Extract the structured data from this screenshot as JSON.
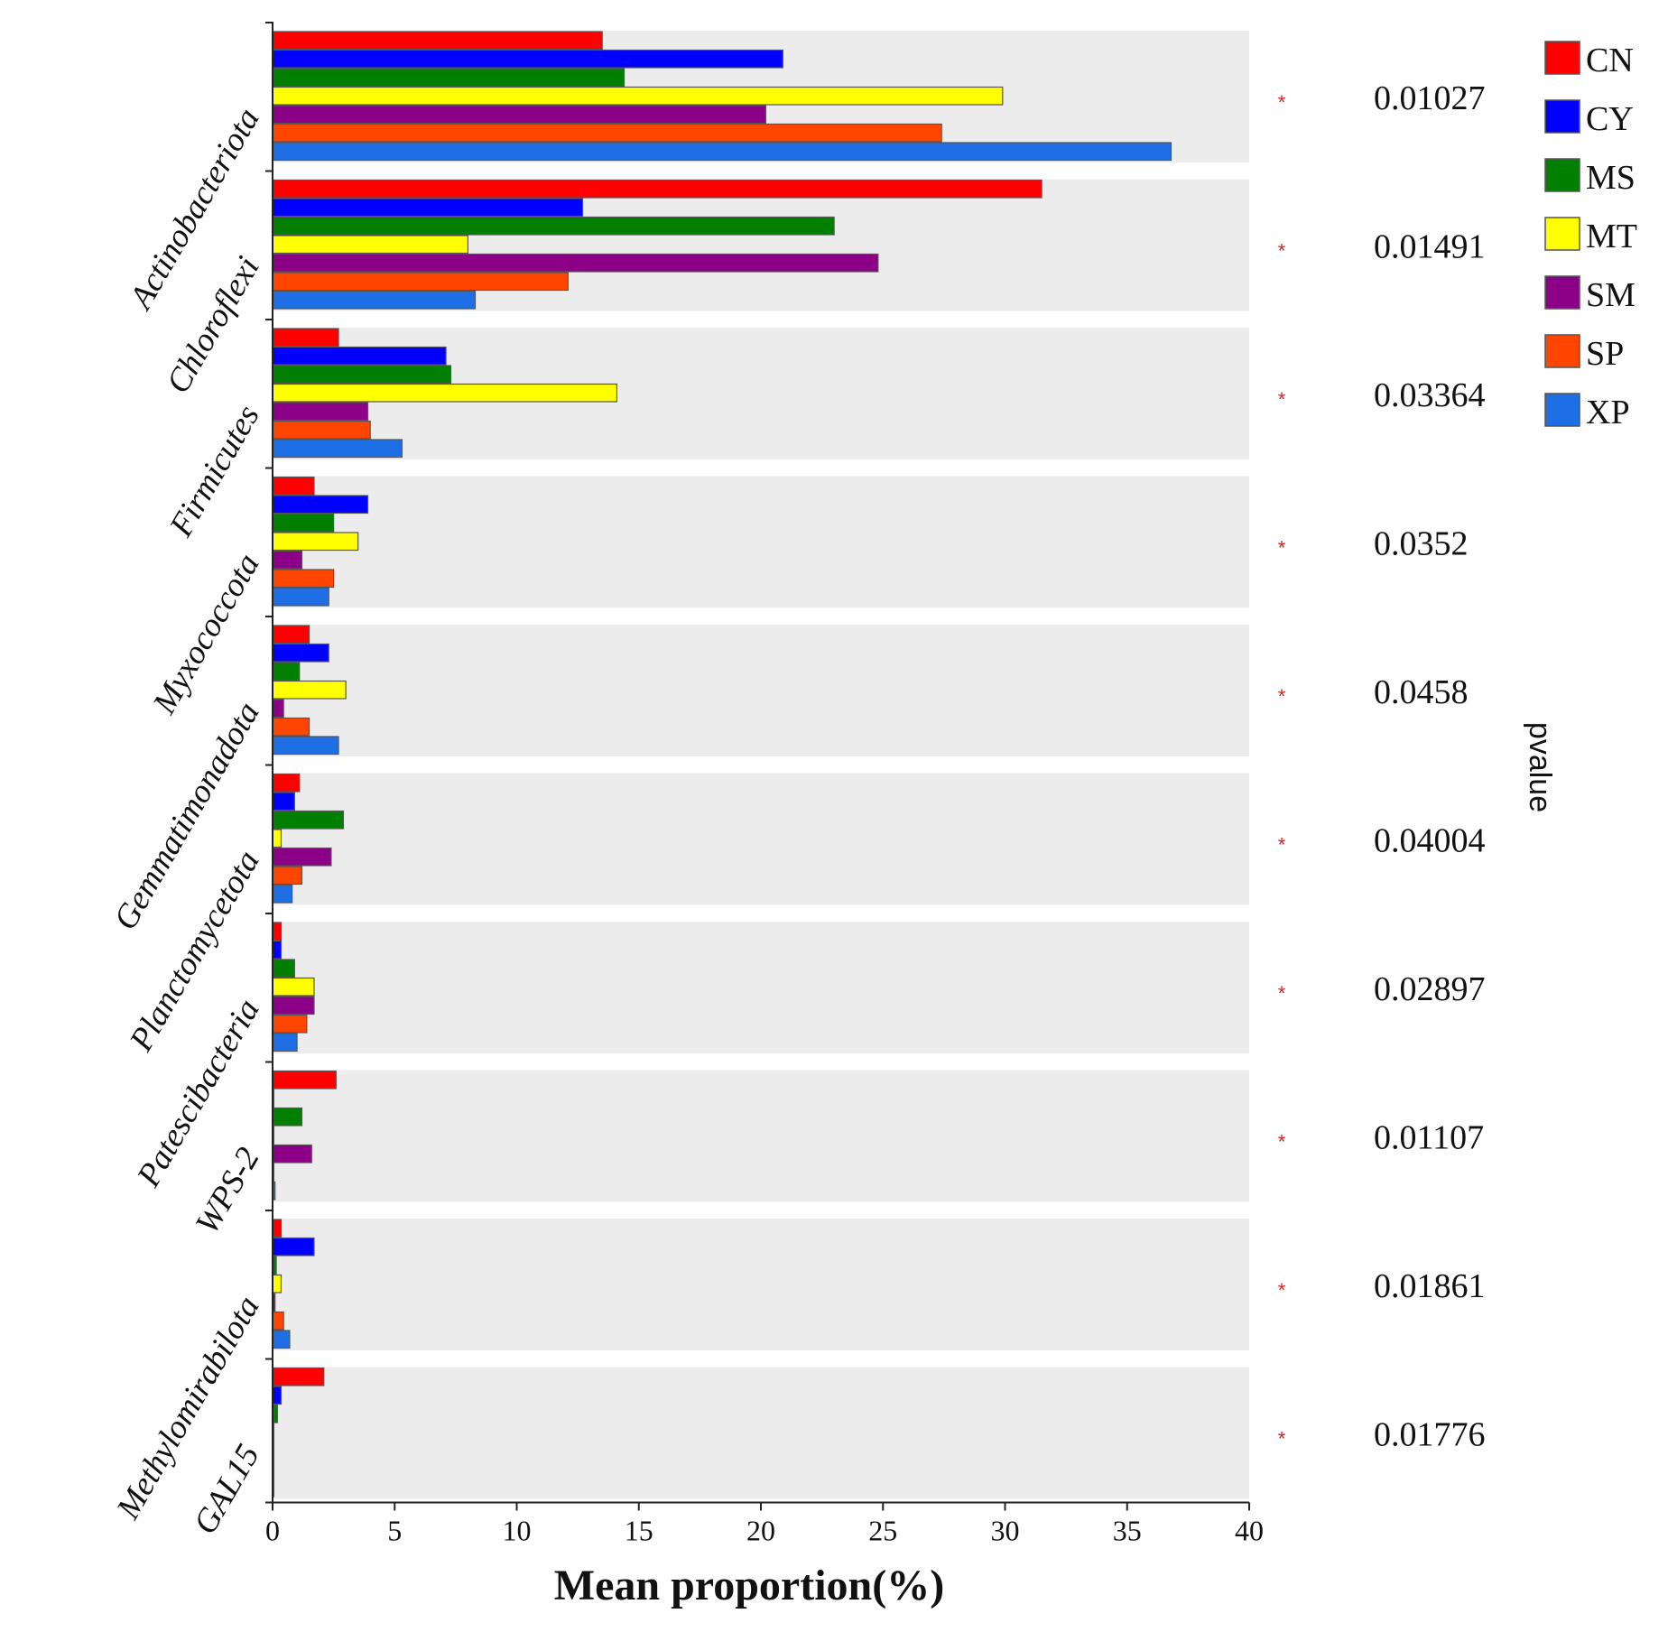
{
  "chart_data": {
    "type": "bar",
    "orientation": "horizontal",
    "xlabel": "Mean proportion(%)",
    "side_label": "pvalue",
    "xlim": [
      0,
      40
    ],
    "xticks": [
      0,
      5,
      10,
      15,
      20,
      25,
      30,
      35,
      40
    ],
    "grid": false,
    "legend_position": "top-right",
    "significance_marker": "*",
    "categories": [
      "Actinobacteriota",
      "Chloroflexi",
      "Firmicutes",
      "Myxococcota",
      "Gemmatimonadota",
      "Planctomycetota",
      "Patescibacteria",
      "WPS-2",
      "Methylomirabilota",
      "GAL15"
    ],
    "pvalues": [
      "0.01027",
      "0.01491",
      "0.03364",
      "0.0352",
      "0.0458",
      "0.04004",
      "0.02897",
      "0.01107",
      "0.01861",
      "0.01776"
    ],
    "series": [
      {
        "name": "CN",
        "color": "#ff0000",
        "values": [
          13.5,
          31.5,
          2.7,
          1.7,
          1.5,
          1.1,
          0.35,
          2.6,
          0.35,
          2.1
        ]
      },
      {
        "name": "CY",
        "color": "#0000ff",
        "values": [
          20.9,
          12.7,
          7.1,
          3.9,
          2.3,
          0.9,
          0.35,
          0.05,
          1.7,
          0.35
        ]
      },
      {
        "name": "MS",
        "color": "#007f00",
        "values": [
          14.4,
          23.0,
          7.3,
          2.5,
          1.1,
          2.9,
          0.9,
          1.2,
          0.15,
          0.2
        ]
      },
      {
        "name": "MT",
        "color": "#ffff00",
        "values": [
          29.9,
          8.0,
          14.1,
          3.5,
          3.0,
          0.35,
          1.7,
          0.05,
          0.35,
          0.05
        ]
      },
      {
        "name": "SM",
        "color": "#8b0086",
        "values": [
          20.2,
          24.8,
          3.9,
          1.2,
          0.45,
          2.4,
          1.7,
          1.6,
          0.1,
          0.05
        ]
      },
      {
        "name": "SP",
        "color": "#ff4500",
        "values": [
          27.4,
          12.1,
          4.0,
          2.5,
          1.5,
          1.2,
          1.4,
          0.05,
          0.45,
          0.05
        ]
      },
      {
        "name": "XP",
        "color": "#1e6fe6",
        "values": [
          36.8,
          8.3,
          5.3,
          2.3,
          2.7,
          0.8,
          1.0,
          0.1,
          0.7,
          0.05
        ]
      }
    ],
    "band_color": "#ececec"
  }
}
